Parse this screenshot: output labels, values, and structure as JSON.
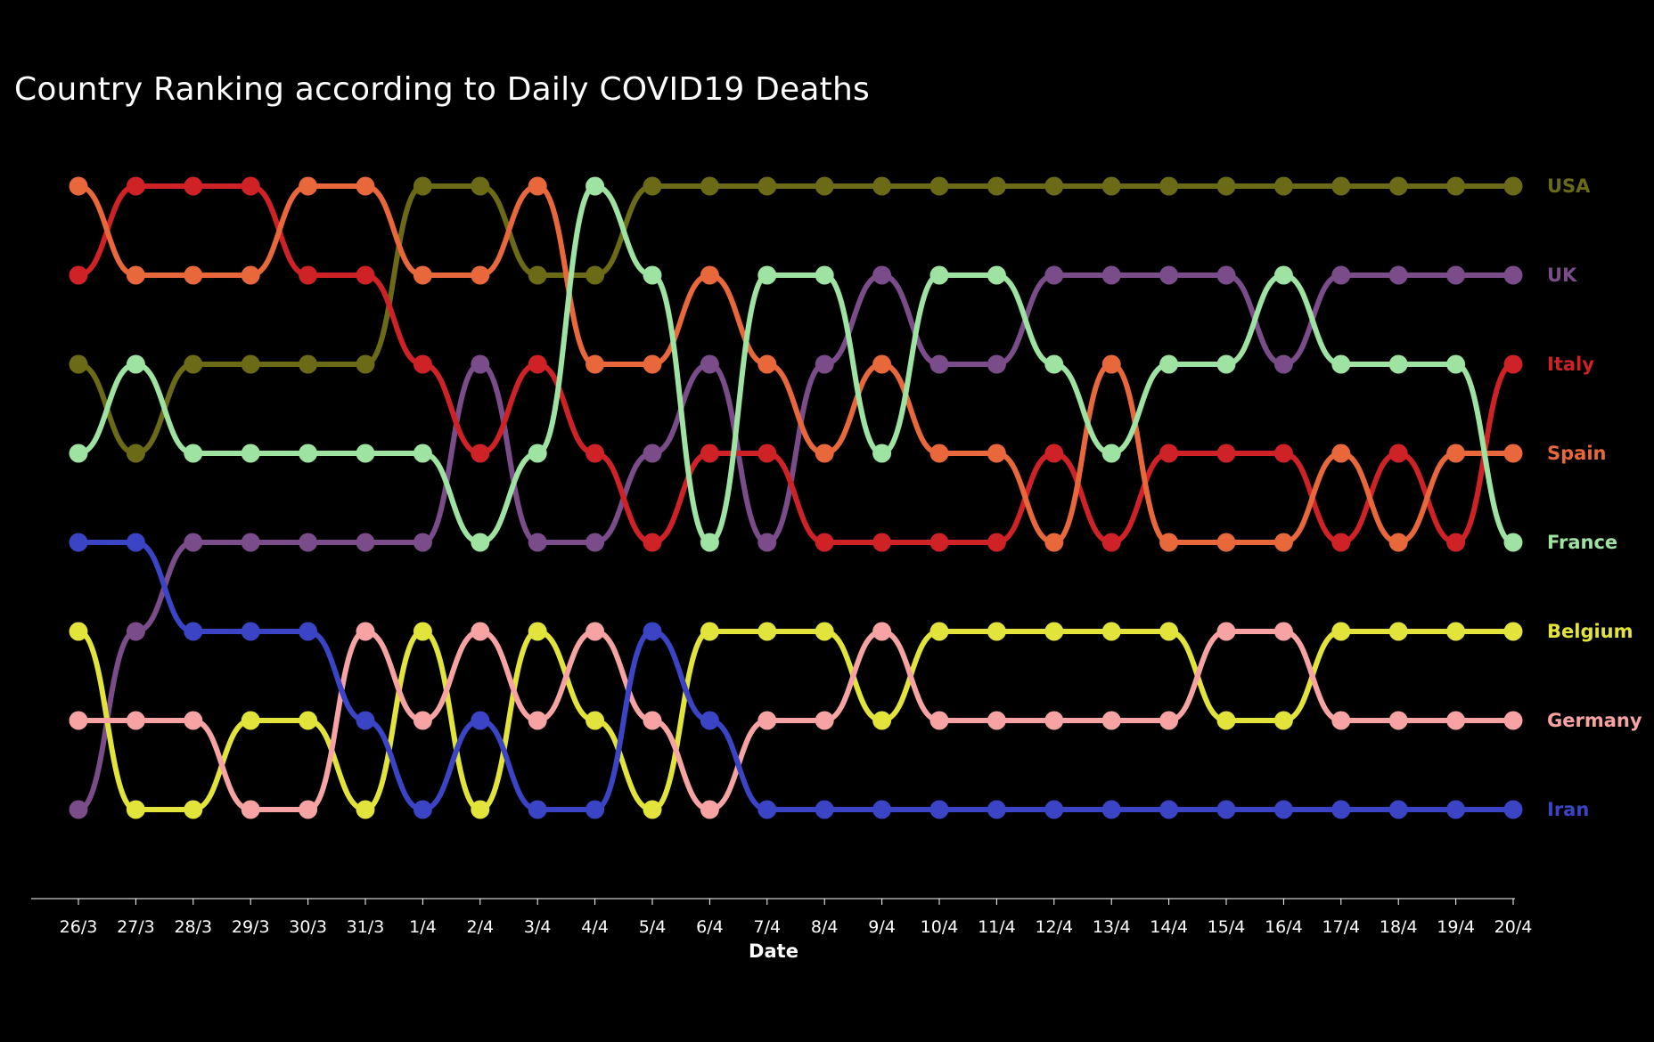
{
  "chart_data": {
    "type": "line",
    "title": "Country Ranking according to Daily COVID19 Deaths",
    "xlabel": "Date",
    "ylabel": "",
    "ylim": [
      1,
      8
    ],
    "y_inverted": true,
    "grid": false,
    "legend": "labels at right end of each line",
    "background": "#000000",
    "x": [
      "26/3",
      "27/3",
      "28/3",
      "29/3",
      "30/3",
      "31/3",
      "1/4",
      "2/4",
      "3/4",
      "4/4",
      "5/4",
      "6/4",
      "7/4",
      "8/4",
      "9/4",
      "10/4",
      "11/4",
      "12/4",
      "13/4",
      "14/4",
      "15/4",
      "16/4",
      "17/4",
      "18/4",
      "19/4",
      "20/4"
    ],
    "series": [
      {
        "name": "USA",
        "color": "#6b6b17",
        "values": [
          3,
          4,
          3,
          3,
          3,
          3,
          1,
          1,
          2,
          2,
          1,
          1,
          1,
          1,
          1,
          1,
          1,
          1,
          1,
          1,
          1,
          1,
          1,
          1,
          1,
          1
        ]
      },
      {
        "name": "UK",
        "color": "#7b4c8a",
        "values": [
          8,
          6,
          5,
          5,
          5,
          5,
          5,
          3,
          5,
          5,
          4,
          3,
          5,
          3,
          2,
          3,
          3,
          2,
          2,
          2,
          2,
          3,
          2,
          2,
          2,
          2
        ]
      },
      {
        "name": "Italy",
        "color": "#cf2226",
        "values": [
          2,
          1,
          1,
          1,
          2,
          2,
          3,
          4,
          3,
          4,
          5,
          4,
          4,
          5,
          5,
          5,
          5,
          4,
          5,
          4,
          4,
          4,
          5,
          4,
          5,
          3
        ]
      },
      {
        "name": "Spain",
        "color": "#e8683c",
        "values": [
          1,
          2,
          2,
          2,
          1,
          1,
          2,
          2,
          1,
          3,
          3,
          2,
          3,
          4,
          3,
          4,
          4,
          5,
          3,
          5,
          5,
          5,
          4,
          5,
          4,
          4
        ]
      },
      {
        "name": "France",
        "color": "#9ee3a2",
        "values": [
          4,
          3,
          4,
          4,
          4,
          4,
          4,
          5,
          4,
          1,
          2,
          5,
          2,
          2,
          4,
          2,
          2,
          3,
          4,
          3,
          3,
          2,
          3,
          3,
          3,
          5
        ]
      },
      {
        "name": "Belgium",
        "color": "#e2e43c",
        "values": [
          6,
          8,
          8,
          7,
          7,
          8,
          6,
          8,
          6,
          7,
          8,
          6,
          6,
          6,
          7,
          6,
          6,
          6,
          6,
          6,
          7,
          7,
          6,
          6,
          6,
          6
        ]
      },
      {
        "name": "Germany",
        "color": "#f8a3a3",
        "values": [
          7,
          7,
          7,
          8,
          8,
          6,
          7,
          6,
          7,
          6,
          7,
          8,
          7,
          7,
          6,
          7,
          7,
          7,
          7,
          7,
          6,
          6,
          7,
          7,
          7,
          7
        ]
      },
      {
        "name": "Iran",
        "color": "#3a44c4",
        "values": [
          5,
          5,
          6,
          6,
          6,
          7,
          8,
          7,
          8,
          8,
          6,
          7,
          8,
          8,
          8,
          8,
          8,
          8,
          8,
          8,
          8,
          8,
          8,
          8,
          8,
          8
        ]
      }
    ]
  }
}
